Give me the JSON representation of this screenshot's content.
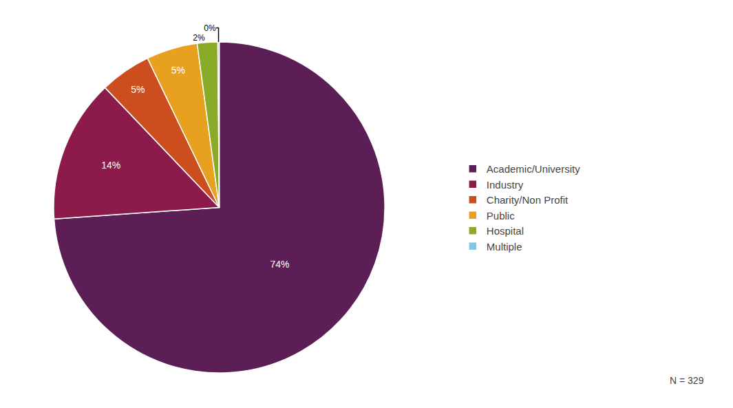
{
  "chart_data": {
    "type": "pie",
    "categories": [
      "Academic/University",
      "Industry",
      "Charity/Non Profit",
      "Public",
      "Hospital",
      "Multiple"
    ],
    "values": [
      73.899,
      13.981,
      4.993,
      4.993,
      1.997,
      0.137
    ],
    "value_labels": [
      "74%",
      "14%",
      "5%",
      "5%",
      "2%",
      "0%"
    ],
    "data_labels": true,
    "colors": [
      "#5c1f55",
      "#8c1b4b",
      "#cc4e1e",
      "#e8a020",
      "#8aaa2a",
      "#7ec8e3"
    ],
    "annotations": [
      "N = 329"
    ],
    "legend": "right"
  }
}
